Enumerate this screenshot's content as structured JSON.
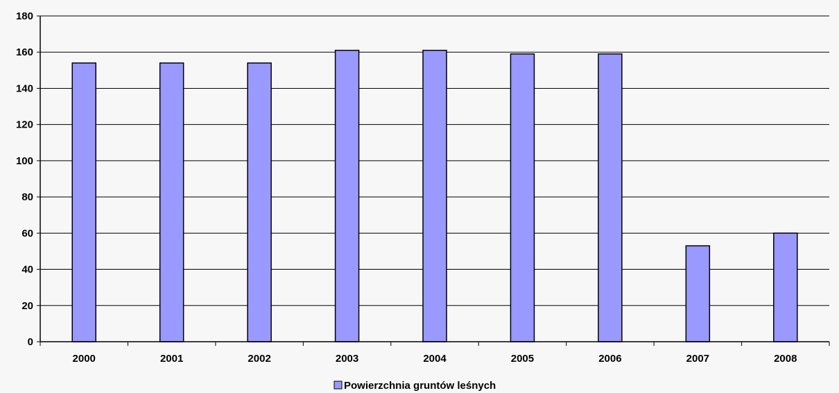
{
  "chart_data": {
    "type": "bar",
    "categories": [
      "2000",
      "2001",
      "2002",
      "2003",
      "2004",
      "2005",
      "2006",
      "2007",
      "2008"
    ],
    "series": [
      {
        "name": "Powierzchnia gruntów leśnych",
        "values": [
          154,
          154,
          154,
          161,
          161,
          159,
          159,
          53,
          60
        ]
      }
    ],
    "ylim": [
      0,
      180
    ],
    "yticks": [
      0,
      20,
      40,
      60,
      80,
      100,
      120,
      140,
      160,
      180
    ],
    "grid": true,
    "legend_position": "bottom",
    "colors": {
      "bar_fill": "#9999ff",
      "bar_stroke": "#000000",
      "grid": "#000000",
      "background": "#f7f7f7"
    }
  }
}
